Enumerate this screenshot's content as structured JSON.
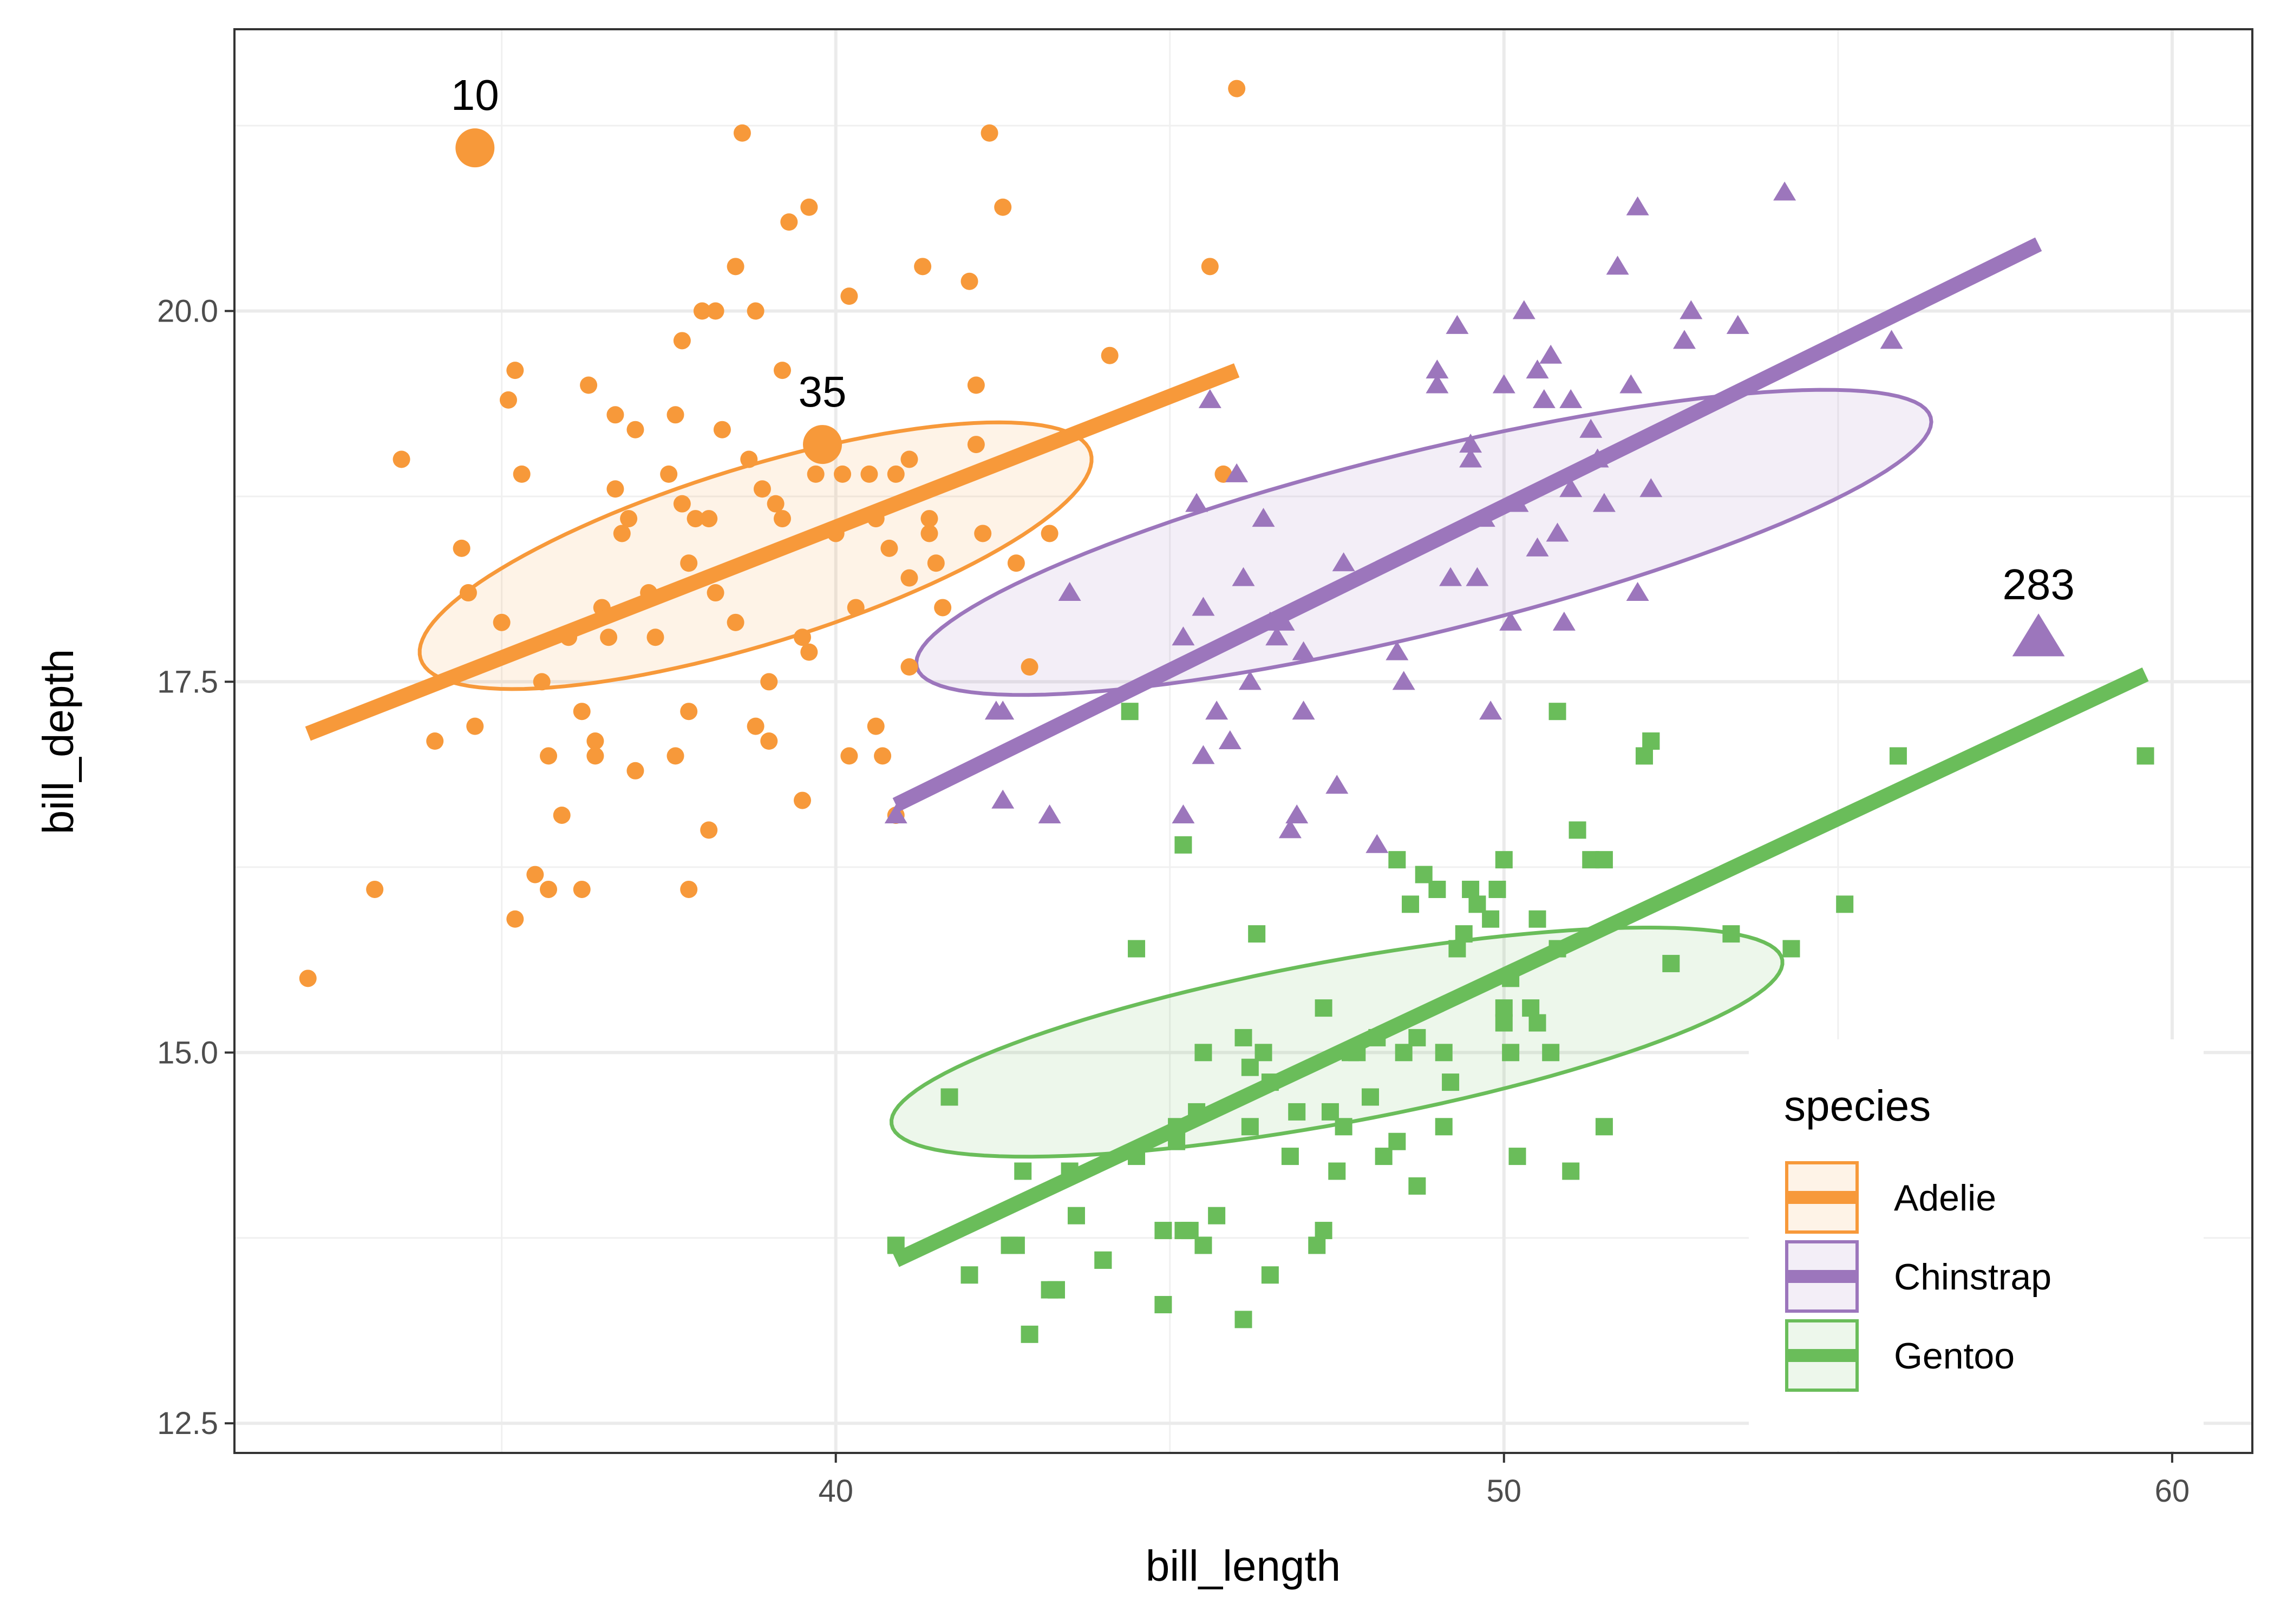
{
  "chart_data": {
    "type": "scatter",
    "xlabel": "bill_length",
    "ylabel": "bill_depth",
    "xlim": [
      31.0,
      61.2
    ],
    "ylim": [
      12.3,
      21.9
    ],
    "xticks": [
      40,
      50,
      60
    ],
    "xtick_labels": [
      "40",
      "50",
      "60"
    ],
    "yticks": [
      12.5,
      15.0,
      17.5,
      20.0
    ],
    "ytick_labels": [
      "12.5",
      "15.0",
      "17.5",
      "20.0"
    ],
    "grid": true,
    "legend": {
      "title": "species",
      "position": "right-bottom-inside",
      "entries": [
        "Adelie",
        "Chinstrap",
        "Gentoo"
      ]
    },
    "series": [
      {
        "name": "Adelie",
        "color": "#F7993A",
        "marker": "circle",
        "points": [
          [
            32.1,
            15.5
          ],
          [
            33.1,
            16.1
          ],
          [
            33.5,
            19.0
          ],
          [
            34.0,
            17.1
          ],
          [
            34.4,
            18.4
          ],
          [
            34.5,
            18.1
          ],
          [
            34.6,
            17.2
          ],
          [
            35.0,
            17.9
          ],
          [
            35.1,
            19.4
          ],
          [
            35.2,
            15.9
          ],
          [
            35.3,
            18.9
          ],
          [
            35.5,
            16.2
          ],
          [
            35.6,
            17.5
          ],
          [
            35.7,
            17.0
          ],
          [
            35.9,
            16.6
          ],
          [
            36.0,
            17.8
          ],
          [
            36.2,
            17.3
          ],
          [
            36.3,
            19.5
          ],
          [
            36.4,
            17.0
          ],
          [
            36.5,
            18.0
          ],
          [
            36.6,
            17.8
          ],
          [
            36.7,
            19.3
          ],
          [
            36.9,
            18.6
          ],
          [
            37.0,
            16.9
          ],
          [
            37.2,
            18.1
          ],
          [
            37.3,
            17.8
          ],
          [
            37.5,
            18.9
          ],
          [
            37.6,
            17.0
          ],
          [
            37.7,
            18.7
          ],
          [
            37.8,
            18.3
          ],
          [
            37.9,
            18.6
          ],
          [
            38.1,
            18.6
          ],
          [
            38.2,
            18.1
          ],
          [
            38.3,
            19.2
          ],
          [
            38.5,
            17.9
          ],
          [
            38.6,
            21.2
          ],
          [
            38.7,
            19.0
          ],
          [
            38.8,
            17.2
          ],
          [
            38.9,
            18.8
          ],
          [
            39.0,
            17.1
          ],
          [
            39.1,
            18.7
          ],
          [
            39.2,
            19.6
          ],
          [
            39.3,
            20.6
          ],
          [
            39.5,
            16.7
          ],
          [
            39.6,
            17.7
          ],
          [
            39.7,
            18.9
          ],
          [
            39.8,
            19.1
          ],
          [
            40.1,
            18.9
          ],
          [
            40.2,
            17.0
          ],
          [
            40.3,
            18.0
          ],
          [
            40.5,
            18.9
          ],
          [
            40.6,
            18.6
          ],
          [
            40.8,
            18.4
          ],
          [
            40.9,
            16.6
          ],
          [
            41.1,
            17.6
          ],
          [
            41.3,
            20.3
          ],
          [
            41.4,
            18.5
          ],
          [
            41.5,
            18.3
          ],
          [
            41.6,
            18.0
          ],
          [
            42.0,
            20.2
          ],
          [
            42.1,
            19.1
          ],
          [
            42.2,
            18.5
          ],
          [
            42.3,
            21.2
          ],
          [
            42.5,
            20.7
          ],
          [
            42.7,
            18.3
          ],
          [
            42.9,
            17.6
          ],
          [
            43.2,
            18.5
          ],
          [
            44.1,
            19.7
          ],
          [
            45.6,
            20.3
          ],
          [
            45.8,
            18.9
          ],
          [
            46.0,
            21.5
          ],
          [
            37.7,
            19.8
          ],
          [
            38.0,
            20.0
          ],
          [
            35.2,
            19.6
          ],
          [
            36.7,
            18.8
          ],
          [
            39.6,
            20.7
          ],
          [
            41.1,
            19.0
          ],
          [
            40.6,
            17.2
          ],
          [
            38.1,
            16.5
          ],
          [
            37.8,
            17.3
          ],
          [
            37.0,
            19.2
          ],
          [
            36.8,
            18.5
          ],
          [
            39.2,
            18.6
          ],
          [
            40.7,
            17.0
          ],
          [
            41.1,
            18.2
          ],
          [
            39.0,
            17.5
          ],
          [
            38.2,
            20.0
          ],
          [
            40.0,
            18.5
          ],
          [
            37.6,
            19.3
          ],
          [
            36.2,
            16.1
          ],
          [
            38.8,
            20.0
          ],
          [
            35.7,
            16.1
          ],
          [
            40.9,
            18.9
          ],
          [
            41.4,
            18.6
          ],
          [
            38.5,
            20.3
          ],
          [
            39.5,
            17.8
          ],
          [
            36.4,
            17.1
          ],
          [
            40.2,
            20.1
          ],
          [
            42.1,
            19.5
          ],
          [
            37.8,
            16.1
          ],
          [
            34.6,
            21.1
          ]
        ]
      },
      {
        "name": "Chinstrap",
        "color": "#9C76BC",
        "marker": "triangle",
        "points": [
          [
            40.9,
            16.6
          ],
          [
            42.4,
            17.3
          ],
          [
            42.5,
            16.7
          ],
          [
            42.5,
            17.3
          ],
          [
            43.2,
            16.6
          ],
          [
            43.5,
            18.1
          ],
          [
            45.2,
            16.6
          ],
          [
            45.2,
            17.8
          ],
          [
            45.4,
            18.7
          ],
          [
            45.5,
            17.0
          ],
          [
            45.6,
            19.4
          ],
          [
            45.7,
            17.3
          ],
          [
            45.9,
            17.1
          ],
          [
            46.0,
            18.9
          ],
          [
            46.1,
            18.2
          ],
          [
            46.2,
            17.5
          ],
          [
            46.4,
            18.6
          ],
          [
            46.6,
            17.8
          ],
          [
            46.7,
            17.9
          ],
          [
            46.8,
            16.5
          ],
          [
            46.9,
            16.6
          ],
          [
            47.0,
            17.3
          ],
          [
            47.5,
            16.8
          ],
          [
            47.6,
            18.3
          ],
          [
            48.1,
            16.4
          ],
          [
            48.5,
            17.5
          ],
          [
            49.0,
            19.5
          ],
          [
            49.2,
            18.2
          ],
          [
            49.3,
            19.9
          ],
          [
            49.5,
            19.0
          ],
          [
            49.6,
            18.2
          ],
          [
            49.7,
            18.6
          ],
          [
            49.8,
            17.3
          ],
          [
            50.0,
            19.5
          ],
          [
            50.1,
            17.9
          ],
          [
            50.2,
            18.7
          ],
          [
            50.3,
            20.0
          ],
          [
            50.5,
            18.4
          ],
          [
            50.6,
            19.4
          ],
          [
            50.8,
            18.5
          ],
          [
            50.9,
            17.9
          ],
          [
            51.0,
            18.8
          ],
          [
            51.3,
            19.2
          ],
          [
            51.4,
            19.0
          ],
          [
            51.5,
            18.7
          ],
          [
            51.7,
            20.3
          ],
          [
            51.9,
            19.5
          ],
          [
            52.0,
            18.1
          ],
          [
            52.0,
            20.7
          ],
          [
            52.2,
            18.8
          ],
          [
            52.7,
            19.8
          ],
          [
            53.5,
            19.9
          ],
          [
            54.2,
            20.8
          ],
          [
            55.8,
            19.8
          ],
          [
            58.0,
            17.8
          ],
          [
            49.0,
            19.6
          ],
          [
            50.5,
            19.6
          ],
          [
            51.0,
            19.4
          ],
          [
            50.7,
            19.7
          ],
          [
            49.5,
            19.1
          ],
          [
            52.8,
            20.0
          ],
          [
            48.4,
            17.7
          ],
          [
            46.5,
            17.9
          ],
          [
            45.5,
            18.0
          ],
          [
            47.0,
            17.7
          ]
        ]
      },
      {
        "name": "Gentoo",
        "color": "#6ABD5A",
        "marker": "square",
        "points": [
          [
            40.9,
            13.7
          ],
          [
            41.7,
            14.7
          ],
          [
            42.0,
            13.5
          ],
          [
            42.6,
            13.7
          ],
          [
            42.7,
            13.7
          ],
          [
            42.8,
            14.2
          ],
          [
            42.9,
            13.1
          ],
          [
            43.2,
            13.4
          ],
          [
            43.3,
            13.4
          ],
          [
            43.5,
            14.2
          ],
          [
            43.6,
            13.9
          ],
          [
            44.0,
            13.6
          ],
          [
            44.4,
            17.3
          ],
          [
            44.5,
            14.3
          ],
          [
            44.9,
            13.3
          ],
          [
            45.1,
            14.5
          ],
          [
            45.2,
            13.8
          ],
          [
            45.3,
            13.8
          ],
          [
            45.5,
            13.7
          ],
          [
            45.7,
            13.9
          ],
          [
            46.1,
            13.2
          ],
          [
            46.2,
            14.5
          ],
          [
            46.3,
            15.8
          ],
          [
            46.5,
            13.5
          ],
          [
            46.8,
            14.3
          ],
          [
            47.2,
            13.7
          ],
          [
            47.3,
            15.3
          ],
          [
            47.5,
            14.2
          ],
          [
            47.8,
            15.0
          ],
          [
            48.1,
            15.1
          ],
          [
            48.2,
            14.3
          ],
          [
            48.4,
            14.4
          ],
          [
            48.5,
            15.0
          ],
          [
            48.7,
            14.1
          ],
          [
            49.1,
            14.5
          ],
          [
            49.3,
            15.7
          ],
          [
            49.5,
            16.1
          ],
          [
            49.8,
            15.9
          ],
          [
            50.0,
            15.2
          ],
          [
            50.1,
            15.0
          ],
          [
            50.2,
            14.3
          ],
          [
            50.4,
            15.3
          ],
          [
            50.5,
            15.9
          ],
          [
            50.8,
            15.7
          ],
          [
            51.1,
            16.5
          ],
          [
            51.3,
            16.3
          ],
          [
            51.5,
            16.3
          ],
          [
            52.1,
            17.0
          ],
          [
            52.2,
            17.1
          ],
          [
            52.5,
            15.6
          ],
          [
            53.4,
            15.8
          ],
          [
            54.3,
            15.7
          ],
          [
            55.1,
            16.0
          ],
          [
            55.9,
            17.0
          ],
          [
            59.6,
            17.0
          ],
          [
            45.4,
            14.6
          ],
          [
            46.4,
            15.0
          ],
          [
            47.7,
            15.0
          ],
          [
            48.8,
            16.2
          ],
          [
            49.6,
            16.0
          ],
          [
            50.0,
            15.3
          ],
          [
            49.9,
            16.1
          ],
          [
            46.9,
            14.6
          ],
          [
            45.5,
            15.0
          ],
          [
            44.9,
            13.8
          ],
          [
            46.5,
            14.8
          ],
          [
            47.4,
            14.6
          ],
          [
            48.6,
            16.0
          ],
          [
            49.4,
            15.8
          ],
          [
            50.5,
            15.2
          ],
          [
            50.8,
            17.3
          ],
          [
            47.6,
            14.5
          ],
          [
            46.1,
            15.1
          ],
          [
            45.1,
            14.4
          ],
          [
            44.0,
            13.6
          ],
          [
            51.0,
            14.2
          ],
          [
            52.2,
            17.1
          ],
          [
            49.2,
            14.8
          ],
          [
            48.7,
            15.1
          ],
          [
            50.0,
            16.3
          ],
          [
            45.2,
            16.4
          ],
          [
            46.2,
            14.9
          ],
          [
            48.4,
            16.3
          ],
          [
            49.0,
            16.1
          ],
          [
            50.7,
            15.0
          ],
          [
            44.5,
            15.7
          ],
          [
            43.3,
            13.4
          ],
          [
            47.3,
            13.8
          ],
          [
            48.0,
            14.7
          ],
          [
            49.1,
            15.0
          ],
          [
            50.1,
            15.5
          ],
          [
            51.5,
            14.5
          ]
        ]
      }
    ],
    "regression_lines": [
      {
        "name": "Adelie",
        "x": [
          32.1,
          46.0
        ],
        "y": [
          17.15,
          19.6
        ]
      },
      {
        "name": "Chinstrap",
        "x": [
          40.9,
          58.0
        ],
        "y": [
          16.67,
          20.45
        ]
      },
      {
        "name": "Gentoo",
        "x": [
          40.9,
          59.6
        ],
        "y": [
          13.6,
          17.55
        ]
      }
    ],
    "ellipses": [
      {
        "name": "Adelie",
        "cx": 38.8,
        "cy": 18.35,
        "rx": 5.6,
        "ry": 1.95,
        "angle": 28
      },
      {
        "name": "Chinstrap",
        "cx": 48.8,
        "cy": 18.44,
        "rx": 8.15,
        "ry": 2.05,
        "angle": 22
      },
      {
        "name": "Gentoo",
        "cx": 47.5,
        "cy": 15.07,
        "rx": 6.95,
        "ry": 1.86,
        "angle": 17
      }
    ],
    "annotations": [
      {
        "label": "10",
        "x": 34.6,
        "y": 21.1,
        "series": "Adelie"
      },
      {
        "label": "35",
        "x": 39.8,
        "y": 19.1,
        "series": "Adelie"
      },
      {
        "label": "283",
        "x": 58.0,
        "y": 17.8,
        "series": "Chinstrap"
      }
    ]
  }
}
